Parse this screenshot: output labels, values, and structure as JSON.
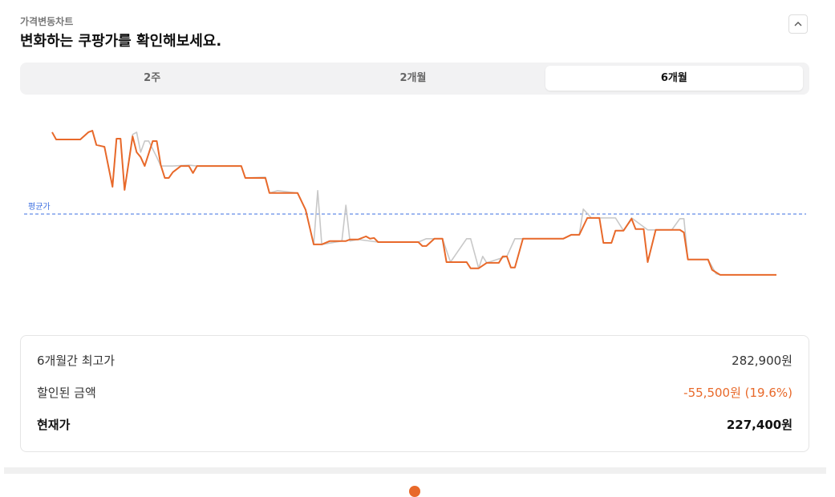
{
  "header": {
    "subtitle": "가격변동차트",
    "title": "변화하는 쿠팡가를 확인해보세요."
  },
  "tabs": {
    "items": [
      "2주",
      "2개월",
      "6개월"
    ],
    "selected": 2
  },
  "chart_data": {
    "type": "line",
    "xlim": [
      0,
      180
    ],
    "ylim": [
      215000,
      290000
    ],
    "average": {
      "label": "평균가",
      "value": 250800,
      "color": "#3d6fe0"
    },
    "series": [
      {
        "color": "#c8c8c8",
        "x": [
          0,
          1,
          7,
          9,
          10,
          11,
          13,
          15,
          16,
          17,
          18,
          20,
          21,
          22,
          23,
          24,
          26,
          27,
          30,
          34,
          36,
          47,
          48,
          53,
          54,
          56,
          61,
          63,
          65,
          66,
          67,
          72,
          73,
          74,
          76,
          81,
          91,
          93,
          97,
          99,
          103,
          104,
          106,
          107,
          108,
          113,
          115,
          127,
          129,
          131,
          132,
          134,
          140,
          142,
          144,
          148,
          154,
          156,
          157,
          158,
          163,
          165,
          166,
          180
        ],
        "values": [
          282300,
          279500,
          279500,
          282300,
          282900,
          277400,
          276700,
          261300,
          279800,
          279800,
          260100,
          281400,
          282300,
          274600,
          278900,
          278900,
          272700,
          269300,
          269300,
          269600,
          269300,
          269300,
          264700,
          265000,
          258900,
          259800,
          258900,
          252400,
          239100,
          259800,
          239100,
          240400,
          254200,
          240400,
          241000,
          240000,
          240000,
          241300,
          241300,
          232300,
          241300,
          241300,
          229900,
          234500,
          232000,
          234500,
          241300,
          241300,
          242800,
          242800,
          252700,
          249300,
          249300,
          244400,
          249300,
          244700,
          244700,
          249000,
          249000,
          233300,
          233300,
          227800,
          227400,
          227400
        ]
      },
      {
        "color": "#e8692a",
        "x": [
          0,
          1,
          7,
          9,
          10,
          11,
          13,
          15,
          16,
          17,
          18,
          20,
          21,
          22,
          23,
          25,
          26,
          27,
          28,
          29,
          30,
          32,
          34,
          35,
          36,
          47,
          48,
          53,
          54,
          61,
          63,
          65,
          67,
          69,
          73,
          74,
          76,
          78,
          79,
          80,
          81,
          85,
          91,
          92,
          93,
          95,
          97,
          98,
          103,
          104,
          106,
          108,
          111,
          112,
          113,
          114,
          115,
          117,
          127,
          129,
          131,
          133,
          136,
          137,
          139,
          140,
          142,
          144,
          145,
          147,
          148,
          150,
          156,
          157,
          158,
          163,
          164,
          166,
          180
        ],
        "values": [
          282300,
          279500,
          279500,
          282300,
          282900,
          277400,
          276700,
          261300,
          279800,
          279800,
          260100,
          280700,
          274600,
          272700,
          269300,
          278900,
          278900,
          269600,
          264700,
          264700,
          266900,
          269300,
          269300,
          266600,
          269300,
          269300,
          264700,
          264700,
          258900,
          258900,
          252400,
          239100,
          239100,
          240400,
          240400,
          241000,
          241000,
          242200,
          241300,
          241600,
          240000,
          240000,
          240000,
          238500,
          238500,
          241300,
          241300,
          232300,
          232300,
          229900,
          229900,
          232000,
          232000,
          234500,
          234500,
          230200,
          230200,
          241300,
          241300,
          242800,
          242800,
          249300,
          249300,
          239700,
          239700,
          244400,
          244400,
          249000,
          245000,
          245000,
          232300,
          244700,
          244700,
          243700,
          233300,
          233300,
          229300,
          227400,
          227400
        ]
      }
    ]
  },
  "summary": {
    "rows": [
      {
        "label": "6개월간 최고가",
        "value": "282,900원"
      },
      {
        "label": "할인된 금액",
        "value": "-55,500원 (19.6%)"
      },
      {
        "label": "현재가",
        "value": "227,400원"
      }
    ]
  }
}
